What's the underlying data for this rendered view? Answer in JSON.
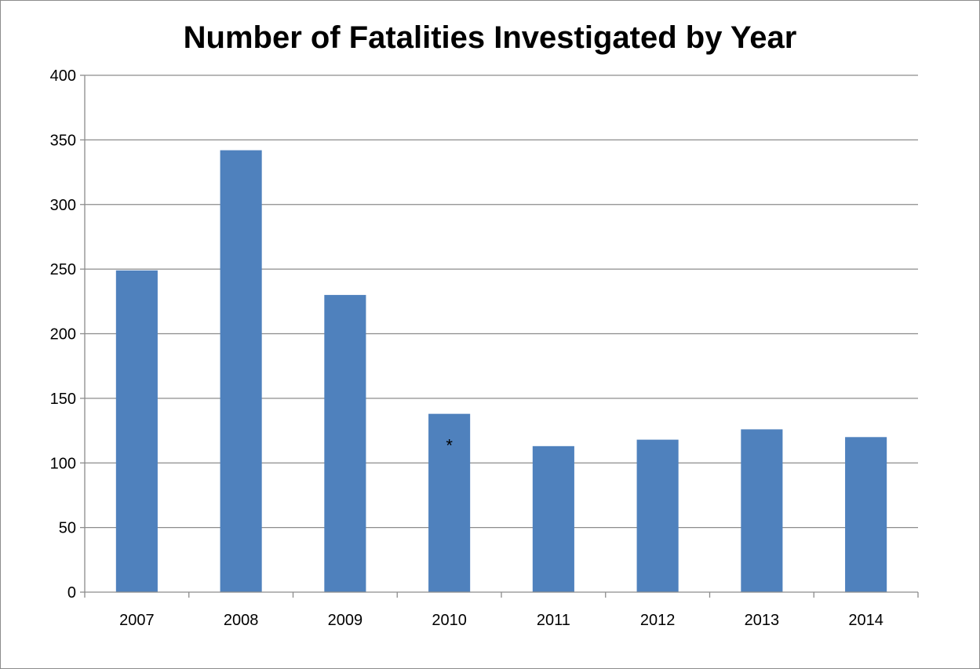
{
  "chart_data": {
    "type": "bar",
    "title": "Number of Fatalities Investigated by Year",
    "categories": [
      "2007",
      "2008",
      "2009",
      "2010",
      "2011",
      "2012",
      "2013",
      "2014"
    ],
    "values": [
      249,
      342,
      230,
      138,
      113,
      118,
      126,
      120
    ],
    "ylim": [
      0,
      400
    ],
    "yticks": [
      0,
      50,
      100,
      150,
      200,
      250,
      300,
      350,
      400
    ],
    "grid": true,
    "legend": "none",
    "bar_color": "#4f81bd",
    "annotations": [
      {
        "category": "2010",
        "text": "*"
      }
    ]
  }
}
